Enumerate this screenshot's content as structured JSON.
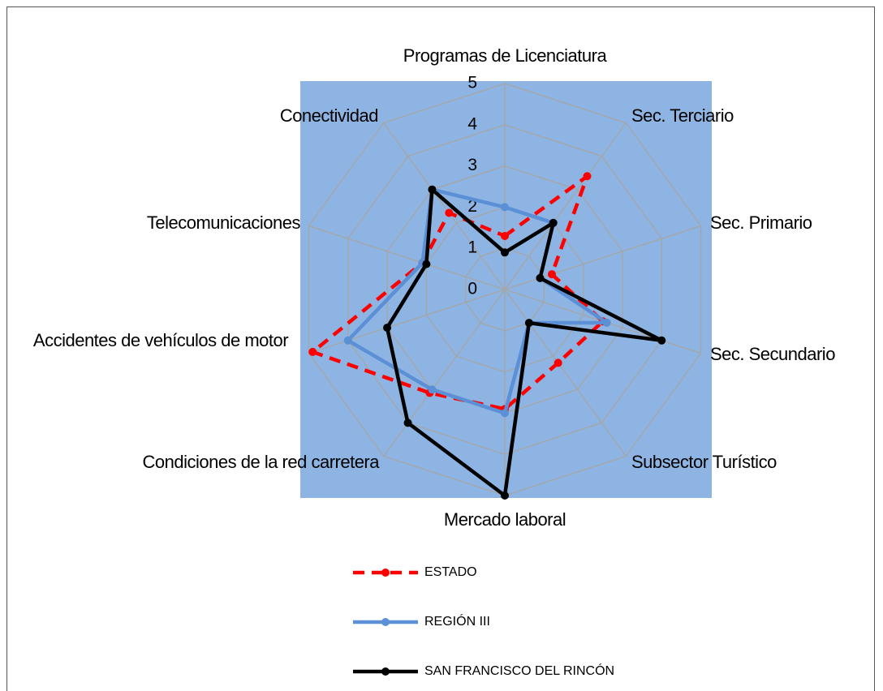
{
  "chart_data": {
    "type": "radar",
    "categories": [
      "Programas de Licenciatura",
      "Sec. Terciario",
      "Sec. Primario",
      "Sec. Secundario",
      "Subsector Turístico",
      "Mercado laboral",
      "Condiciones de la red carretera",
      "Accidentes de vehículos de motor",
      "Telecomunicaciones",
      "Conectividad"
    ],
    "rlim": [
      0,
      5
    ],
    "rticks": [
      0,
      1,
      2,
      3,
      4,
      5
    ],
    "grid": true,
    "series": [
      {
        "name": "ESTADO",
        "color": "#ff0000",
        "dashed": true,
        "values": [
          1.3,
          3.4,
          1.2,
          2.5,
          2.2,
          2.9,
          3.1,
          4.9,
          2.1,
          2.3
        ]
      },
      {
        "name": "REGIÓN III",
        "color": "#5b8fd6",
        "values": [
          2.0,
          2.0,
          0.9,
          2.6,
          1.0,
          3.0,
          3.0,
          4.0,
          2.1,
          3.0
        ]
      },
      {
        "name": "SAN FRANCISCO DEL RINCÓN",
        "color": "#000000",
        "values": [
          0.9,
          2.0,
          0.9,
          4.0,
          1.0,
          5.0,
          4.0,
          3.0,
          2.0,
          3.0
        ]
      }
    ]
  }
}
